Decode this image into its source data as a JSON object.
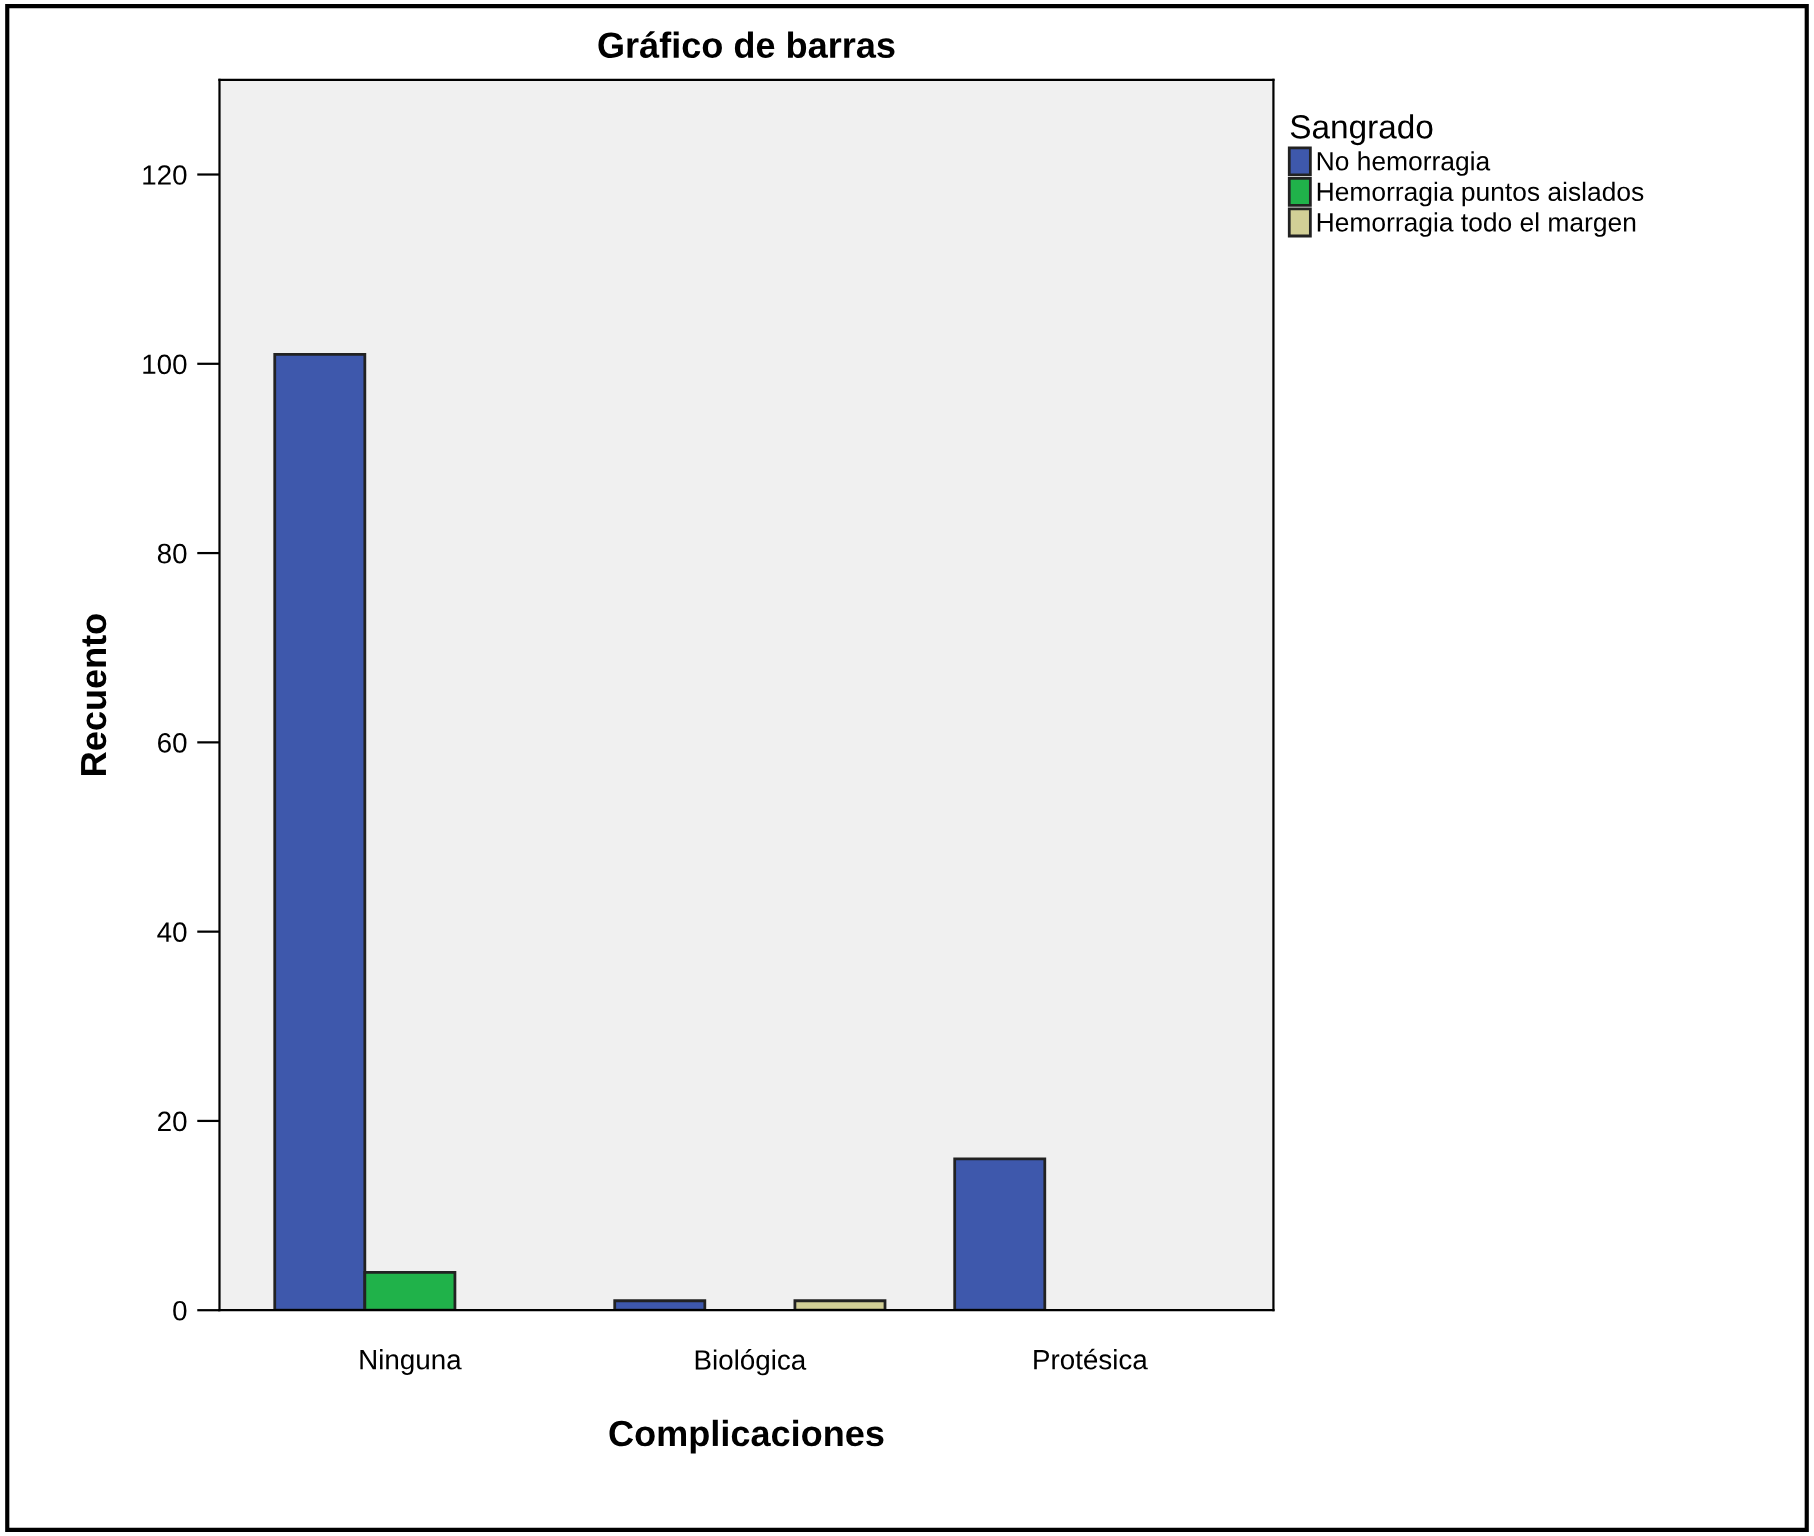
{
  "chart_data": {
    "type": "bar",
    "title": "Gráfico de barras",
    "xlabel": "Complicaciones",
    "ylabel": "Recuento",
    "legend_title": "Sangrado",
    "categories": [
      "Ninguna",
      "Biológica",
      "Protésica"
    ],
    "series": [
      {
        "name": "No hemorragia",
        "color": "#3e58ac",
        "values": [
          101,
          1,
          16
        ]
      },
      {
        "name": "Hemorragia puntos aislados",
        "color": "#20b24a",
        "values": [
          4,
          null,
          null
        ]
      },
      {
        "name": "Hemorragia todo el margen",
        "color": "#d2cf96",
        "values": [
          null,
          1,
          null
        ]
      }
    ],
    "ylim": [
      0,
      130
    ],
    "yticks": [
      0,
      20,
      40,
      60,
      80,
      100,
      120
    ],
    "grid": false,
    "legend": "top right"
  }
}
